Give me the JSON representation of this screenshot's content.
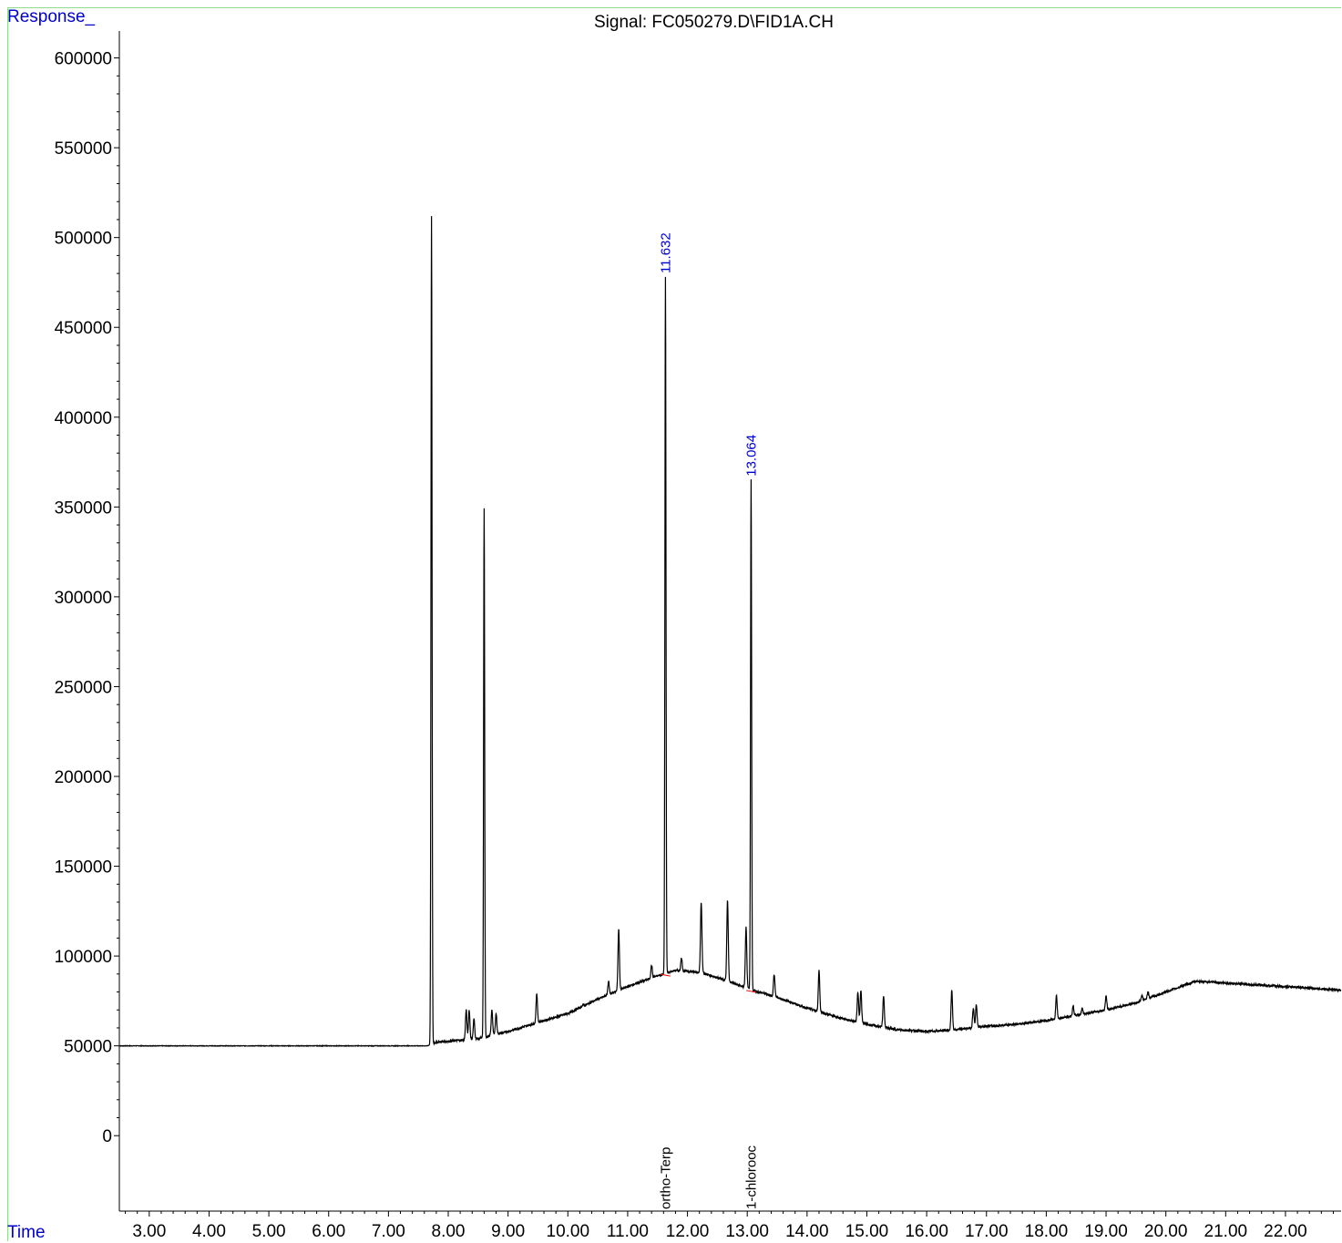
{
  "header": {
    "y_axis_label": "Response_",
    "x_axis_label": "Time",
    "title": "Signal: FC050279.D\\FID1A.CH"
  },
  "colors": {
    "trace": "#000000",
    "annotation": "#0000cc",
    "baseline_marker": "#ff0000",
    "frame": "#8fdc8f"
  },
  "chart_data": {
    "type": "line",
    "title": "Signal: FC050279.D\\FID1A.CH",
    "xlabel": "Time",
    "ylabel": "Response_",
    "xlim": [
      2.5,
      22.93
    ],
    "ylim": [
      -42000,
      615000
    ],
    "x_ticks": [
      "3.00",
      "4.00",
      "5.00",
      "6.00",
      "7.00",
      "8.00",
      "9.00",
      "10.00",
      "11.00",
      "12.00",
      "13.00",
      "14.00",
      "15.00",
      "16.00",
      "17.00",
      "18.00",
      "19.00",
      "20.00",
      "21.00",
      "22.00"
    ],
    "x_tick_values": [
      3,
      4,
      5,
      6,
      7,
      8,
      9,
      10,
      11,
      12,
      13,
      14,
      15,
      16,
      17,
      18,
      19,
      20,
      21,
      22
    ],
    "y_ticks": [
      "0",
      "50000",
      "100000",
      "150000",
      "200000",
      "250000",
      "300000",
      "350000",
      "400000",
      "450000",
      "500000",
      "550000",
      "600000"
    ],
    "y_tick_values": [
      0,
      50000,
      100000,
      150000,
      200000,
      250000,
      300000,
      350000,
      400000,
      450000,
      500000,
      550000,
      600000
    ],
    "grid": false,
    "baseline": [
      [
        2.5,
        50000
      ],
      [
        7.65,
        50000
      ],
      [
        7.8,
        52000
      ],
      [
        8.5,
        54000
      ],
      [
        9.0,
        58000
      ],
      [
        9.5,
        63000
      ],
      [
        10.0,
        68000
      ],
      [
        10.5,
        76000
      ],
      [
        11.0,
        83000
      ],
      [
        11.5,
        89000
      ],
      [
        11.8,
        92000
      ],
      [
        12.2,
        91000
      ],
      [
        12.6,
        87000
      ],
      [
        13.0,
        82000
      ],
      [
        13.5,
        77000
      ],
      [
        14.0,
        71000
      ],
      [
        14.5,
        66000
      ],
      [
        15.0,
        62000
      ],
      [
        15.5,
        59000
      ],
      [
        16.0,
        58000
      ],
      [
        16.5,
        59000
      ],
      [
        17.0,
        61000
      ],
      [
        17.5,
        62000
      ],
      [
        18.0,
        64000
      ],
      [
        18.5,
        67000
      ],
      [
        19.0,
        70000
      ],
      [
        19.5,
        74000
      ],
      [
        20.0,
        80000
      ],
      [
        20.5,
        86000
      ],
      [
        21.0,
        85000
      ],
      [
        21.5,
        84000
      ],
      [
        22.0,
        83000
      ],
      [
        22.5,
        82000
      ],
      [
        22.93,
        81000
      ]
    ],
    "peaks": [
      {
        "x": 7.72,
        "y": 512000
      },
      {
        "x": 8.3,
        "y": 70000
      },
      {
        "x": 8.35,
        "y": 70000
      },
      {
        "x": 8.43,
        "y": 65000
      },
      {
        "x": 8.6,
        "y": 349000
      },
      {
        "x": 8.73,
        "y": 70000
      },
      {
        "x": 8.8,
        "y": 68000
      },
      {
        "x": 9.48,
        "y": 79000
      },
      {
        "x": 10.25,
        "y": 73000
      },
      {
        "x": 10.68,
        "y": 86000
      },
      {
        "x": 10.85,
        "y": 115000
      },
      {
        "x": 11.4,
        "y": 95000
      },
      {
        "x": 11.632,
        "y": 478000
      },
      {
        "x": 11.9,
        "y": 99000
      },
      {
        "x": 12.23,
        "y": 130000
      },
      {
        "x": 12.67,
        "y": 131000
      },
      {
        "x": 12.98,
        "y": 116000
      },
      {
        "x": 13.064,
        "y": 365000
      },
      {
        "x": 13.45,
        "y": 90000
      },
      {
        "x": 14.2,
        "y": 92000
      },
      {
        "x": 14.85,
        "y": 80000
      },
      {
        "x": 14.9,
        "y": 81000
      },
      {
        "x": 15.28,
        "y": 78000
      },
      {
        "x": 16.42,
        "y": 81000
      },
      {
        "x": 16.78,
        "y": 71000
      },
      {
        "x": 16.83,
        "y": 73000
      },
      {
        "x": 18.17,
        "y": 78000
      },
      {
        "x": 18.45,
        "y": 72000
      },
      {
        "x": 18.6,
        "y": 71000
      },
      {
        "x": 19.0,
        "y": 78000
      },
      {
        "x": 19.6,
        "y": 78000
      },
      {
        "x": 19.7,
        "y": 80000
      }
    ],
    "annotations": [
      {
        "x": 11.632,
        "y": 478000,
        "text": "11.632"
      },
      {
        "x": 13.064,
        "y": 365000,
        "text": "13.064"
      }
    ],
    "compound_labels": [
      {
        "x": 11.632,
        "text": "ortho-Terp"
      },
      {
        "x": 13.064,
        "text": "1-chlorooc"
      }
    ]
  }
}
